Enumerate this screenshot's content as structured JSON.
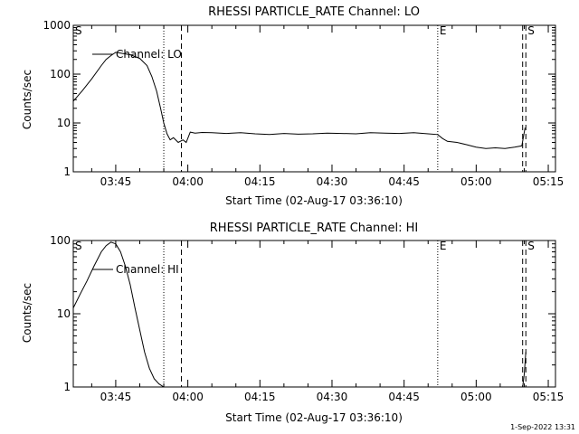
{
  "footer_timestamp": "1-Sep-2022 13:31",
  "chart_data": [
    {
      "type": "line",
      "title": "RHESSI PARTICLE_RATE Channel: LO",
      "xlabel": "Start Time (02-Aug-17 03:36:10)",
      "ylabel": "Counts/sec",
      "y_scale": "log",
      "ylim": [
        1,
        1000
      ],
      "xlim": [
        "03:36:10",
        "05:16:30"
      ],
      "x_ticks": [
        "03:45",
        "04:00",
        "04:15",
        "04:30",
        "04:45",
        "05:00",
        "05:15"
      ],
      "y_ticks": [
        "1",
        "10",
        "100",
        "1000"
      ],
      "grid": false,
      "legend": "top-left",
      "series": [
        {
          "name": "Channel: LO",
          "x": [
            "03:36:10",
            "03:38:00",
            "03:40:00",
            "03:42:00",
            "03:43:00",
            "03:44:00",
            "03:45:00",
            "03:46:00",
            "03:48:00",
            "03:50:00",
            "03:51:30",
            "03:52:30",
            "03:53:30",
            "03:54:20",
            "03:55:00",
            "03:55:40",
            "03:56:20",
            "03:57:00",
            "03:58:00",
            "03:59:00",
            "03:59:40",
            "04:00:30",
            "04:01:30",
            "04:03:00",
            "04:05:00",
            "04:08:00",
            "04:11:00",
            "04:14:00",
            "04:17:00",
            "04:20:00",
            "04:23:00",
            "04:26:00",
            "04:29:00",
            "04:32:00",
            "04:35:00",
            "04:38:00",
            "04:41:00",
            "04:44:00",
            "04:47:00",
            "04:50:00",
            "04:52:00",
            "04:53:00",
            "04:54:00",
            "04:56:00",
            "04:58:00",
            "05:00:00",
            "05:02:00",
            "05:04:00",
            "05:06:00",
            "05:08:00",
            "05:09:30",
            "05:10:10"
          ],
          "values": [
            28,
            45,
            80,
            150,
            200,
            240,
            280,
            270,
            250,
            210,
            150,
            90,
            45,
            20,
            10,
            6,
            4.5,
            5,
            4,
            4.5,
            4,
            6.5,
            6.2,
            6.4,
            6.3,
            6.1,
            6.3,
            6,
            5.8,
            6.1,
            5.9,
            6,
            6.2,
            6.1,
            6,
            6.3,
            6.2,
            6.1,
            6.3,
            6,
            5.8,
            4.8,
            4.2,
            4,
            3.6,
            3.2,
            3,
            3.1,
            3,
            3.2,
            3.4,
            8
          ]
        }
      ]
    },
    {
      "type": "line",
      "title": "RHESSI PARTICLE_RATE Channel: HI",
      "xlabel": "Start Time (02-Aug-17 03:36:10)",
      "ylabel": "Counts/sec",
      "y_scale": "log",
      "ylim": [
        1,
        100
      ],
      "xlim": [
        "03:36:10",
        "05:16:30"
      ],
      "x_ticks": [
        "03:45",
        "04:00",
        "04:15",
        "04:30",
        "04:45",
        "05:00",
        "05:15"
      ],
      "y_ticks": [
        "1",
        "10",
        "100"
      ],
      "grid": false,
      "legend": "top-left",
      "series": [
        {
          "name": "Channel: HI",
          "x": [
            "03:36:10",
            "03:37:30",
            "03:39:00",
            "03:40:30",
            "03:42:00",
            "03:43:00",
            "03:44:00",
            "03:45:00",
            "03:46:00",
            "03:47:00",
            "03:48:00",
            "03:49:00",
            "03:50:00",
            "03:51:00",
            "03:52:00",
            "03:53:00",
            "03:54:00",
            "03:55:00"
          ],
          "values": [
            12,
            18,
            28,
            45,
            70,
            85,
            95,
            90,
            70,
            45,
            25,
            12,
            6,
            3,
            1.8,
            1.3,
            1.1,
            1
          ]
        },
        {
          "name": "",
          "x": [
            "05:09:40",
            "05:10:00",
            "05:10:20"
          ],
          "values": [
            1,
            1.5,
            3
          ]
        }
      ]
    }
  ],
  "markers": [
    {
      "label": "S",
      "time": "03:36:10",
      "style": "none"
    },
    {
      "label": "",
      "time": "03:55:00",
      "style": "dotted"
    },
    {
      "label": "",
      "time": "03:58:40",
      "style": "dashed"
    },
    {
      "label": "E",
      "time": "04:52:00",
      "style": "dotted"
    },
    {
      "label": "",
      "time": "05:09:40",
      "style": "dashed"
    },
    {
      "label": "S",
      "time": "05:10:20",
      "style": "dashed"
    }
  ]
}
